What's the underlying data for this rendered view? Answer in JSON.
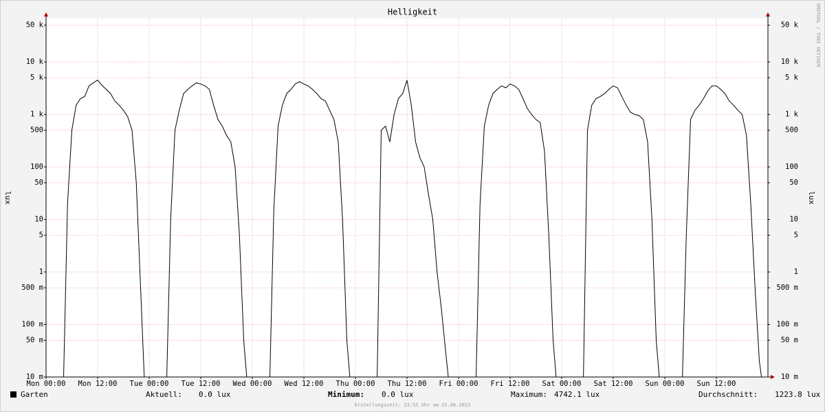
{
  "chart_data": {
    "type": "line",
    "title": "Helligkeit",
    "y_label": "lux",
    "watermark": "RRDTOOL / TOBI OETIKER",
    "footer": "Erstellungszeit: 23:55 Uhr am 25.06.2023",
    "log_y": true,
    "grid": true,
    "xlim": [
      0,
      168
    ],
    "xticks": [
      {
        "value": 0,
        "label": "Mon 00:00"
      },
      {
        "value": 12,
        "label": "Mon 12:00"
      },
      {
        "value": 24,
        "label": "Tue 00:00"
      },
      {
        "value": 36,
        "label": "Tue 12:00"
      },
      {
        "value": 48,
        "label": "Wed 00:00"
      },
      {
        "value": 60,
        "label": "Wed 12:00"
      },
      {
        "value": 72,
        "label": "Thu 00:00"
      },
      {
        "value": 84,
        "label": "Thu 12:00"
      },
      {
        "value": 96,
        "label": "Fri 00:00"
      },
      {
        "value": 108,
        "label": "Fri 12:00"
      },
      {
        "value": 120,
        "label": "Sat 00:00"
      },
      {
        "value": 132,
        "label": "Sat 12:00"
      },
      {
        "value": 144,
        "label": "Sun 00:00"
      },
      {
        "value": 156,
        "label": "Sun 12:00"
      }
    ],
    "ylim": [
      0.01,
      67000
    ],
    "yticks": [
      {
        "value": 50000,
        "label": "50 k"
      },
      {
        "value": 10000,
        "label": "10 k"
      },
      {
        "value": 5000,
        "label": "5 k"
      },
      {
        "value": 1000,
        "label": "1 k"
      },
      500,
      100,
      50,
      10,
      5,
      1,
      {
        "value": 0.5,
        "label": "500 m"
      },
      {
        "value": 0.1,
        "label": "100 m"
      },
      {
        "value": 0.05,
        "label": "50 m"
      },
      {
        "value": 0.01,
        "label": "10 m"
      }
    ],
    "x": [
      0,
      1,
      2,
      3,
      4,
      5,
      6,
      7,
      8,
      9,
      10,
      11,
      12,
      13,
      14,
      15,
      16,
      17,
      18,
      19,
      20,
      21,
      22,
      23,
      24,
      25,
      26,
      27,
      28,
      29,
      30,
      31,
      32,
      33,
      34,
      35,
      36,
      37,
      38,
      39,
      40,
      41,
      42,
      43,
      44,
      45,
      46,
      47,
      48,
      49,
      50,
      51,
      52,
      53,
      54,
      55,
      56,
      57,
      58,
      59,
      60,
      61,
      62,
      63,
      64,
      65,
      66,
      67,
      68,
      69,
      70,
      71,
      72,
      73,
      74,
      75,
      76,
      77,
      78,
      79,
      80,
      81,
      82,
      83,
      84,
      85,
      86,
      87,
      88,
      89,
      90,
      91,
      92,
      93,
      94,
      95,
      96,
      97,
      98,
      99,
      100,
      101,
      102,
      103,
      104,
      105,
      106,
      107,
      108,
      109,
      110,
      111,
      112,
      113,
      114,
      115,
      116,
      117,
      118,
      119,
      120,
      121,
      122,
      123,
      124,
      125,
      126,
      127,
      128,
      129,
      130,
      131,
      132,
      133,
      134,
      135,
      136,
      137,
      138,
      139,
      140,
      141,
      142,
      143,
      144,
      145,
      146,
      147,
      148,
      149,
      150,
      151,
      152,
      153,
      154,
      155,
      156,
      157,
      158,
      159,
      160,
      161,
      162,
      163,
      164,
      165,
      166,
      167,
      168
    ],
    "series": [
      {
        "name": "Garten",
        "color": "#000000",
        "values": [
          null,
          null,
          null,
          null,
          0.005,
          20,
          500,
          1500,
          2000,
          2200,
          3500,
          4000,
          4500,
          3600,
          3000,
          2500,
          1800,
          1500,
          1200,
          900,
          500,
          50,
          0.5,
          0.005,
          null,
          null,
          null,
          null,
          0.005,
          10,
          500,
          1200,
          2500,
          3000,
          3500,
          4000,
          3800,
          3500,
          3000,
          1500,
          800,
          600,
          400,
          300,
          100,
          5,
          0.05,
          0.005,
          null,
          null,
          null,
          null,
          0.005,
          15,
          600,
          1500,
          2500,
          3000,
          3800,
          4200,
          3800,
          3500,
          3000,
          2500,
          2000,
          1800,
          1200,
          800,
          300,
          10,
          0.05,
          0.005,
          null,
          null,
          null,
          null,
          null,
          0.005,
          500,
          600,
          300,
          1000,
          2000,
          2500,
          4500,
          1500,
          300,
          150,
          100,
          30,
          10,
          1,
          0.2,
          0.03,
          0.005,
          null,
          null,
          null,
          null,
          null,
          0.005,
          20,
          600,
          1500,
          2500,
          3000,
          3500,
          3200,
          3800,
          3500,
          3000,
          2000,
          1300,
          1000,
          800,
          700,
          200,
          5,
          0.05,
          0.005,
          null,
          null,
          null,
          null,
          null,
          0.005,
          500,
          1500,
          2000,
          2200,
          2500,
          3000,
          3500,
          3200,
          2200,
          1500,
          1100,
          1000,
          950,
          800,
          300,
          10,
          0.05,
          0.005,
          null,
          null,
          null,
          null,
          0.005,
          5,
          800,
          1200,
          1500,
          2000,
          2800,
          3500,
          3500,
          3000,
          2500,
          1800,
          1500,
          1200,
          1000,
          400,
          20,
          0.5,
          0.02,
          0.005,
          null
        ]
      }
    ],
    "stats": [
      {
        "label": "Aktuell:",
        "value": "0.0 lux"
      },
      {
        "label": "Minimum:",
        "value": "0.0 lux"
      },
      {
        "label": "Maximum:",
        "value": "4742.1 lux"
      },
      {
        "label": "Durchschnitt:",
        "value": "1223.8 lux"
      }
    ]
  }
}
